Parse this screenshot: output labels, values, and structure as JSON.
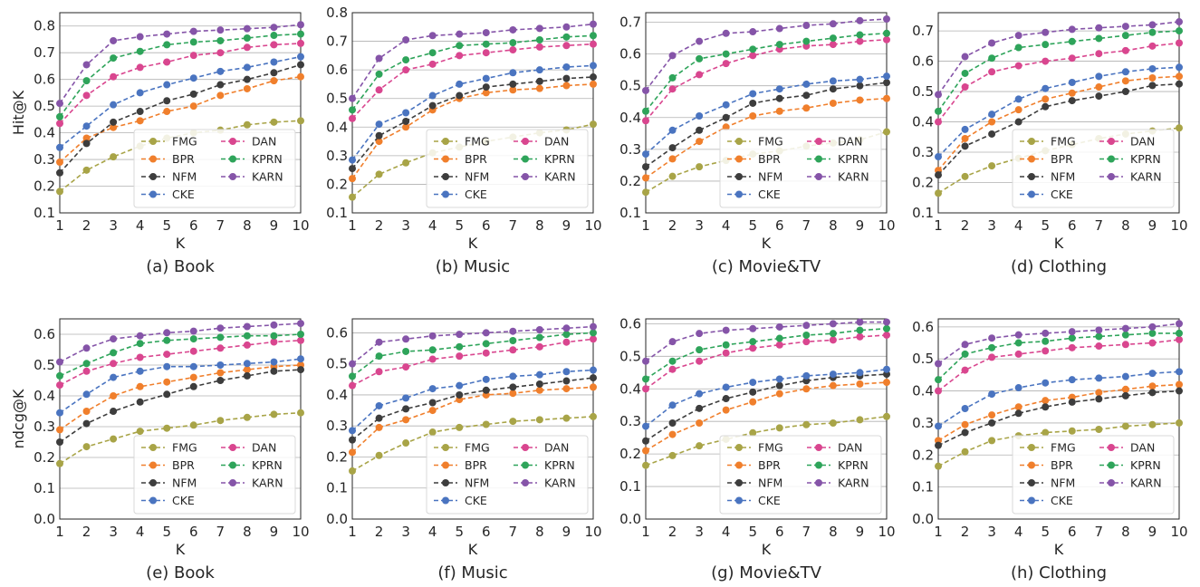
{
  "colors": {
    "FMG": "#a8a447",
    "BPR": "#f07f2c",
    "NFM": "#3d3d3d",
    "CKE": "#4a74c0",
    "DAN": "#d9468f",
    "KPRN": "#2ea45a",
    "KARN": "#8554a8"
  },
  "chart_data": [
    {
      "type": "line",
      "caption": "(a) Book",
      "xlabel": "K",
      "ylabel": "Hit@K",
      "ylim": [
        0.1,
        0.85
      ],
      "yticks": [
        0.1,
        0.2,
        0.3,
        0.4,
        0.5,
        0.6,
        0.7,
        0.8
      ],
      "yfmt": 1,
      "x": [
        1,
        2,
        3,
        4,
        5,
        6,
        7,
        8,
        9,
        10
      ],
      "grid": "y",
      "legend": "lower-right, 2 columns",
      "series": [
        {
          "name": "FMG",
          "values": [
            0.18,
            0.26,
            0.31,
            0.35,
            0.38,
            0.4,
            0.41,
            0.43,
            0.44,
            0.445
          ]
        },
        {
          "name": "BPR",
          "values": [
            0.29,
            0.38,
            0.42,
            0.445,
            0.48,
            0.5,
            0.54,
            0.565,
            0.595,
            0.61
          ]
        },
        {
          "name": "NFM",
          "values": [
            0.25,
            0.36,
            0.44,
            0.48,
            0.52,
            0.545,
            0.58,
            0.6,
            0.625,
            0.655
          ]
        },
        {
          "name": "CKE",
          "values": [
            0.345,
            0.425,
            0.505,
            0.55,
            0.58,
            0.605,
            0.63,
            0.645,
            0.665,
            0.685
          ]
        },
        {
          "name": "DAN",
          "values": [
            0.435,
            0.54,
            0.61,
            0.645,
            0.665,
            0.69,
            0.7,
            0.72,
            0.73,
            0.735
          ]
        },
        {
          "name": "KPRN",
          "values": [
            0.46,
            0.595,
            0.68,
            0.705,
            0.73,
            0.74,
            0.745,
            0.755,
            0.765,
            0.77
          ]
        },
        {
          "name": "KARN",
          "values": [
            0.51,
            0.655,
            0.745,
            0.76,
            0.77,
            0.78,
            0.785,
            0.79,
            0.795,
            0.805
          ]
        }
      ]
    },
    {
      "type": "line",
      "caption": "(b) Music",
      "xlabel": "K",
      "ylabel": "",
      "ylim": [
        0.1,
        0.8
      ],
      "yticks": [
        0.1,
        0.2,
        0.3,
        0.4,
        0.5,
        0.6,
        0.7,
        0.8
      ],
      "yfmt": 1,
      "x": [
        1,
        2,
        3,
        4,
        5,
        6,
        7,
        8,
        9,
        10
      ],
      "grid": "y",
      "legend": "lower-right, 2 columns",
      "series": [
        {
          "name": "FMG",
          "values": [
            0.155,
            0.235,
            0.275,
            0.31,
            0.33,
            0.35,
            0.365,
            0.38,
            0.39,
            0.41
          ]
        },
        {
          "name": "BPR",
          "values": [
            0.22,
            0.35,
            0.4,
            0.46,
            0.5,
            0.52,
            0.53,
            0.535,
            0.545,
            0.55
          ]
        },
        {
          "name": "NFM",
          "values": [
            0.255,
            0.37,
            0.42,
            0.475,
            0.51,
            0.54,
            0.55,
            0.56,
            0.57,
            0.575
          ]
        },
        {
          "name": "CKE",
          "values": [
            0.285,
            0.41,
            0.45,
            0.51,
            0.55,
            0.57,
            0.59,
            0.6,
            0.61,
            0.615
          ]
        },
        {
          "name": "DAN",
          "values": [
            0.43,
            0.53,
            0.6,
            0.62,
            0.65,
            0.66,
            0.67,
            0.68,
            0.685,
            0.69
          ]
        },
        {
          "name": "KPRN",
          "values": [
            0.46,
            0.585,
            0.635,
            0.66,
            0.685,
            0.69,
            0.695,
            0.705,
            0.715,
            0.72
          ]
        },
        {
          "name": "KARN",
          "values": [
            0.5,
            0.64,
            0.705,
            0.72,
            0.725,
            0.73,
            0.74,
            0.745,
            0.75,
            0.76
          ]
        }
      ]
    },
    {
      "type": "line",
      "caption": "(c) Movie&TV",
      "xlabel": "K",
      "ylabel": "",
      "ylim": [
        0.1,
        0.73
      ],
      "yticks": [
        0.1,
        0.2,
        0.3,
        0.4,
        0.5,
        0.6,
        0.7
      ],
      "yfmt": 1,
      "x": [
        1,
        2,
        3,
        4,
        5,
        6,
        7,
        8,
        9,
        10
      ],
      "grid": "y",
      "legend": "lower-right, 2 columns",
      "series": [
        {
          "name": "FMG",
          "values": [
            0.165,
            0.215,
            0.245,
            0.265,
            0.285,
            0.295,
            0.31,
            0.32,
            0.33,
            0.355
          ]
        },
        {
          "name": "BPR",
          "values": [
            0.21,
            0.27,
            0.325,
            0.37,
            0.405,
            0.42,
            0.43,
            0.445,
            0.455,
            0.46
          ]
        },
        {
          "name": "NFM",
          "values": [
            0.245,
            0.305,
            0.36,
            0.4,
            0.445,
            0.46,
            0.47,
            0.49,
            0.5,
            0.51
          ]
        },
        {
          "name": "CKE",
          "values": [
            0.285,
            0.36,
            0.405,
            0.44,
            0.475,
            0.49,
            0.505,
            0.515,
            0.52,
            0.53
          ]
        },
        {
          "name": "DAN",
          "values": [
            0.39,
            0.49,
            0.535,
            0.57,
            0.595,
            0.615,
            0.625,
            0.63,
            0.64,
            0.645
          ]
        },
        {
          "name": "KPRN",
          "values": [
            0.42,
            0.525,
            0.585,
            0.6,
            0.615,
            0.63,
            0.64,
            0.65,
            0.66,
            0.665
          ]
        },
        {
          "name": "KARN",
          "values": [
            0.485,
            0.595,
            0.64,
            0.665,
            0.67,
            0.68,
            0.69,
            0.695,
            0.705,
            0.71
          ]
        }
      ]
    },
    {
      "type": "line",
      "caption": "(d) Clothing",
      "xlabel": "K",
      "ylabel": "",
      "ylim": [
        0.1,
        0.76
      ],
      "yticks": [
        0.1,
        0.2,
        0.3,
        0.4,
        0.5,
        0.6,
        0.7
      ],
      "yfmt": 1,
      "x": [
        1,
        2,
        3,
        4,
        5,
        6,
        7,
        8,
        9,
        10
      ],
      "grid": "y",
      "legend": "lower-right, 2 columns",
      "series": [
        {
          "name": "FMG",
          "values": [
            0.165,
            0.22,
            0.255,
            0.28,
            0.305,
            0.325,
            0.345,
            0.36,
            0.37,
            0.38
          ]
        },
        {
          "name": "BPR",
          "values": [
            0.24,
            0.345,
            0.4,
            0.44,
            0.475,
            0.495,
            0.515,
            0.535,
            0.545,
            0.55
          ]
        },
        {
          "name": "NFM",
          "values": [
            0.225,
            0.32,
            0.36,
            0.4,
            0.45,
            0.47,
            0.485,
            0.5,
            0.52,
            0.525
          ]
        },
        {
          "name": "CKE",
          "values": [
            0.285,
            0.375,
            0.425,
            0.475,
            0.51,
            0.53,
            0.55,
            0.565,
            0.575,
            0.58
          ]
        },
        {
          "name": "DAN",
          "values": [
            0.4,
            0.515,
            0.565,
            0.585,
            0.6,
            0.61,
            0.625,
            0.635,
            0.65,
            0.66
          ]
        },
        {
          "name": "KPRN",
          "values": [
            0.435,
            0.56,
            0.61,
            0.645,
            0.655,
            0.665,
            0.675,
            0.685,
            0.695,
            0.7
          ]
        },
        {
          "name": "KARN",
          "values": [
            0.49,
            0.615,
            0.66,
            0.685,
            0.695,
            0.705,
            0.71,
            0.715,
            0.72,
            0.73
          ]
        }
      ]
    },
    {
      "type": "line",
      "caption": "(e) Book",
      "xlabel": "K",
      "ylabel": "ndcg@K",
      "ylim": [
        0.0,
        0.65
      ],
      "yticks": [
        0.0,
        0.1,
        0.2,
        0.3,
        0.4,
        0.5,
        0.6
      ],
      "yfmt": 1,
      "x": [
        1,
        2,
        3,
        4,
        5,
        6,
        7,
        8,
        9,
        10
      ],
      "grid": "y",
      "legend": "lower-right, 2 columns",
      "series": [
        {
          "name": "FMG",
          "values": [
            0.18,
            0.235,
            0.26,
            0.285,
            0.295,
            0.305,
            0.32,
            0.33,
            0.34,
            0.345
          ]
        },
        {
          "name": "BPR",
          "values": [
            0.29,
            0.35,
            0.4,
            0.43,
            0.445,
            0.46,
            0.475,
            0.485,
            0.495,
            0.5
          ]
        },
        {
          "name": "NFM",
          "values": [
            0.25,
            0.31,
            0.35,
            0.38,
            0.405,
            0.43,
            0.45,
            0.465,
            0.48,
            0.485
          ]
        },
        {
          "name": "CKE",
          "values": [
            0.345,
            0.405,
            0.46,
            0.48,
            0.495,
            0.495,
            0.5,
            0.505,
            0.51,
            0.52
          ]
        },
        {
          "name": "DAN",
          "values": [
            0.435,
            0.48,
            0.505,
            0.525,
            0.535,
            0.545,
            0.555,
            0.565,
            0.575,
            0.58
          ]
        },
        {
          "name": "KPRN",
          "values": [
            0.465,
            0.505,
            0.54,
            0.57,
            0.58,
            0.585,
            0.59,
            0.595,
            0.595,
            0.6
          ]
        },
        {
          "name": "KARN",
          "values": [
            0.51,
            0.555,
            0.585,
            0.595,
            0.605,
            0.61,
            0.62,
            0.625,
            0.63,
            0.635
          ]
        }
      ]
    },
    {
      "type": "line",
      "caption": "(f) Music",
      "xlabel": "K",
      "ylabel": "",
      "ylim": [
        0.0,
        0.645
      ],
      "yticks": [
        0.0,
        0.1,
        0.2,
        0.3,
        0.4,
        0.5,
        0.6
      ],
      "yfmt": 1,
      "x": [
        1,
        2,
        3,
        4,
        5,
        6,
        7,
        8,
        9,
        10
      ],
      "grid": "y",
      "legend": "lower-right, 2 columns",
      "series": [
        {
          "name": "FMG",
          "values": [
            0.155,
            0.205,
            0.245,
            0.28,
            0.295,
            0.305,
            0.315,
            0.32,
            0.325,
            0.33
          ]
        },
        {
          "name": "BPR",
          "values": [
            0.215,
            0.295,
            0.32,
            0.35,
            0.385,
            0.4,
            0.405,
            0.415,
            0.42,
            0.425
          ]
        },
        {
          "name": "NFM",
          "values": [
            0.255,
            0.325,
            0.355,
            0.375,
            0.4,
            0.415,
            0.425,
            0.435,
            0.445,
            0.455
          ]
        },
        {
          "name": "CKE",
          "values": [
            0.285,
            0.365,
            0.39,
            0.42,
            0.43,
            0.45,
            0.46,
            0.465,
            0.475,
            0.48
          ]
        },
        {
          "name": "DAN",
          "values": [
            0.43,
            0.475,
            0.49,
            0.515,
            0.525,
            0.535,
            0.545,
            0.555,
            0.57,
            0.58
          ]
        },
        {
          "name": "KPRN",
          "values": [
            0.46,
            0.525,
            0.54,
            0.545,
            0.555,
            0.565,
            0.575,
            0.585,
            0.595,
            0.6
          ]
        },
        {
          "name": "KARN",
          "values": [
            0.5,
            0.57,
            0.58,
            0.59,
            0.595,
            0.6,
            0.605,
            0.61,
            0.615,
            0.62
          ]
        }
      ]
    },
    {
      "type": "line",
      "caption": "(g) Movie&TV",
      "xlabel": "K",
      "ylabel": "",
      "ylim": [
        0.0,
        0.615
      ],
      "yticks": [
        0.0,
        0.1,
        0.2,
        0.3,
        0.4,
        0.5,
        0.6
      ],
      "yfmt": 1,
      "x": [
        1,
        2,
        3,
        4,
        5,
        6,
        7,
        8,
        9,
        10
      ],
      "grid": "y",
      "legend": "lower-right, 2 columns",
      "series": [
        {
          "name": "FMG",
          "values": [
            0.165,
            0.195,
            0.225,
            0.245,
            0.265,
            0.28,
            0.29,
            0.295,
            0.305,
            0.315
          ]
        },
        {
          "name": "BPR",
          "values": [
            0.21,
            0.26,
            0.295,
            0.335,
            0.36,
            0.385,
            0.4,
            0.41,
            0.415,
            0.42
          ]
        },
        {
          "name": "NFM",
          "values": [
            0.24,
            0.295,
            0.34,
            0.37,
            0.39,
            0.41,
            0.425,
            0.435,
            0.44,
            0.445
          ]
        },
        {
          "name": "CKE",
          "values": [
            0.285,
            0.35,
            0.385,
            0.405,
            0.42,
            0.43,
            0.44,
            0.445,
            0.45,
            0.46
          ]
        },
        {
          "name": "DAN",
          "values": [
            0.4,
            0.46,
            0.485,
            0.51,
            0.525,
            0.535,
            0.545,
            0.55,
            0.56,
            0.565
          ]
        },
        {
          "name": "KPRN",
          "values": [
            0.43,
            0.485,
            0.52,
            0.535,
            0.545,
            0.555,
            0.565,
            0.57,
            0.58,
            0.585
          ]
        },
        {
          "name": "KARN",
          "values": [
            0.485,
            0.545,
            0.57,
            0.58,
            0.585,
            0.59,
            0.595,
            0.6,
            0.605,
            0.605
          ]
        }
      ]
    },
    {
      "type": "line",
      "caption": "(h) Clothing",
      "xlabel": "K",
      "ylabel": "",
      "ylim": [
        0.0,
        0.625
      ],
      "yticks": [
        0.0,
        0.1,
        0.2,
        0.3,
        0.4,
        0.5,
        0.6
      ],
      "yfmt": 1,
      "x": [
        1,
        2,
        3,
        4,
        5,
        6,
        7,
        8,
        9,
        10
      ],
      "grid": "y",
      "legend": "lower-right, 2 columns",
      "series": [
        {
          "name": "FMG",
          "values": [
            0.165,
            0.21,
            0.245,
            0.26,
            0.27,
            0.275,
            0.28,
            0.29,
            0.295,
            0.3
          ]
        },
        {
          "name": "BPR",
          "values": [
            0.245,
            0.295,
            0.325,
            0.35,
            0.37,
            0.38,
            0.395,
            0.405,
            0.415,
            0.42
          ]
        },
        {
          "name": "NFM",
          "values": [
            0.23,
            0.27,
            0.3,
            0.33,
            0.35,
            0.365,
            0.375,
            0.385,
            0.395,
            0.4
          ]
        },
        {
          "name": "CKE",
          "values": [
            0.29,
            0.345,
            0.39,
            0.41,
            0.425,
            0.435,
            0.44,
            0.445,
            0.455,
            0.46
          ]
        },
        {
          "name": "DAN",
          "values": [
            0.4,
            0.465,
            0.505,
            0.515,
            0.525,
            0.535,
            0.54,
            0.545,
            0.55,
            0.56
          ]
        },
        {
          "name": "KPRN",
          "values": [
            0.435,
            0.515,
            0.535,
            0.55,
            0.555,
            0.565,
            0.57,
            0.575,
            0.58,
            0.58
          ]
        },
        {
          "name": "KARN",
          "values": [
            0.485,
            0.545,
            0.565,
            0.575,
            0.58,
            0.585,
            0.59,
            0.595,
            0.6,
            0.61
          ]
        }
      ]
    }
  ]
}
